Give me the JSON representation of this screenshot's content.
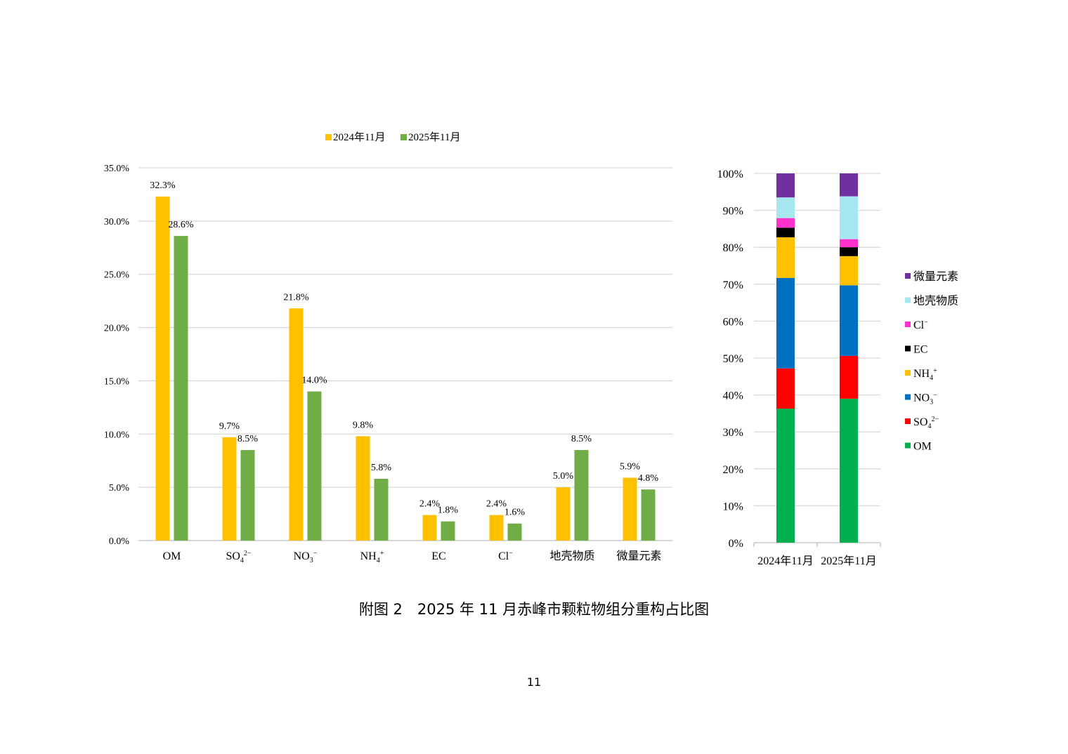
{
  "caption": "附图 2　2025 年 11 月赤峰市颗粒物组分重构占比图",
  "page_number": "11",
  "colors": {
    "series_2024": "#FFC000",
    "series_2025": "#70AD47",
    "grid": "#D9D9D9",
    "axis": "#BFBFBF"
  },
  "chart_data": [
    {
      "type": "bar",
      "legend_position": "top-center",
      "grid": true,
      "ylim": [
        0,
        35
      ],
      "yticks": [
        "0.0%",
        "5.0%",
        "10.0%",
        "15.0%",
        "20.0%",
        "25.0%",
        "30.0%",
        "35.0%"
      ],
      "categories": [
        {
          "main": "OM",
          "sub": "",
          "sup": ""
        },
        {
          "main": "SO",
          "sub": "4",
          "sup": "2−"
        },
        {
          "main": "NO",
          "sub": "3",
          "sup": "−"
        },
        {
          "main": "NH",
          "sub": "4",
          "sup": "+"
        },
        {
          "main": "EC",
          "sub": "",
          "sup": ""
        },
        {
          "main": "Cl",
          "sub": "",
          "sup": "−"
        },
        {
          "main": "地壳物质",
          "sub": "",
          "sup": ""
        },
        {
          "main": "微量元素",
          "sub": "",
          "sup": ""
        }
      ],
      "series": [
        {
          "name": "2024年11月",
          "color": "#FFC000",
          "values": [
            32.3,
            9.7,
            21.8,
            9.8,
            2.4,
            2.4,
            5.0,
            5.9
          ],
          "labels": [
            "32.3%",
            "9.7%",
            "21.8%",
            "9.8%",
            "2.4%",
            "2.4%",
            "5.0%",
            "5.9%"
          ]
        },
        {
          "name": "2025年11月",
          "color": "#70AD47",
          "values": [
            28.6,
            8.5,
            14.0,
            5.8,
            1.8,
            1.6,
            8.5,
            4.8
          ],
          "labels": [
            "28.6%",
            "8.5%",
            "14.0%",
            "5.8%",
            "1.8%",
            "1.6%",
            "8.5%",
            "4.8%"
          ]
        }
      ]
    },
    {
      "type": "bar",
      "stacked": true,
      "legend_position": "right",
      "grid": true,
      "ylim": [
        0,
        100
      ],
      "yticks": [
        "0%",
        "10%",
        "20%",
        "30%",
        "40%",
        "50%",
        "60%",
        "70%",
        "80%",
        "90%",
        "100%"
      ],
      "categories": [
        "2024年11月",
        "2025年11月"
      ],
      "series": [
        {
          "name": {
            "main": "OM",
            "sub": "",
            "sup": ""
          },
          "color": "#00B050",
          "values": [
            36.3,
            39.0
          ]
        },
        {
          "name": {
            "main": "SO",
            "sub": "4",
            "sup": "2−"
          },
          "color": "#FF0000",
          "values": [
            10.9,
            11.6
          ]
        },
        {
          "name": {
            "main": "NO",
            "sub": "3",
            "sup": "−"
          },
          "color": "#0070C0",
          "values": [
            24.5,
            19.1
          ]
        },
        {
          "name": {
            "main": "NH",
            "sub": "4",
            "sup": "+"
          },
          "color": "#FFC000",
          "values": [
            11.0,
            7.9
          ]
        },
        {
          "name": {
            "main": "EC",
            "sub": "",
            "sup": ""
          },
          "color": "#000000",
          "values": [
            2.6,
            2.4
          ]
        },
        {
          "name": {
            "main": "Cl",
            "sub": "",
            "sup": "−"
          },
          "color": "#FF33CC",
          "values": [
            2.6,
            2.2
          ]
        },
        {
          "name": {
            "main": "地壳物质",
            "sub": "",
            "sup": ""
          },
          "color": "#A6E7F0",
          "values": [
            5.6,
            11.6
          ]
        },
        {
          "name": {
            "main": "微量元素",
            "sub": "",
            "sup": ""
          },
          "color": "#7030A0",
          "values": [
            6.5,
            6.2
          ]
        }
      ]
    }
  ]
}
